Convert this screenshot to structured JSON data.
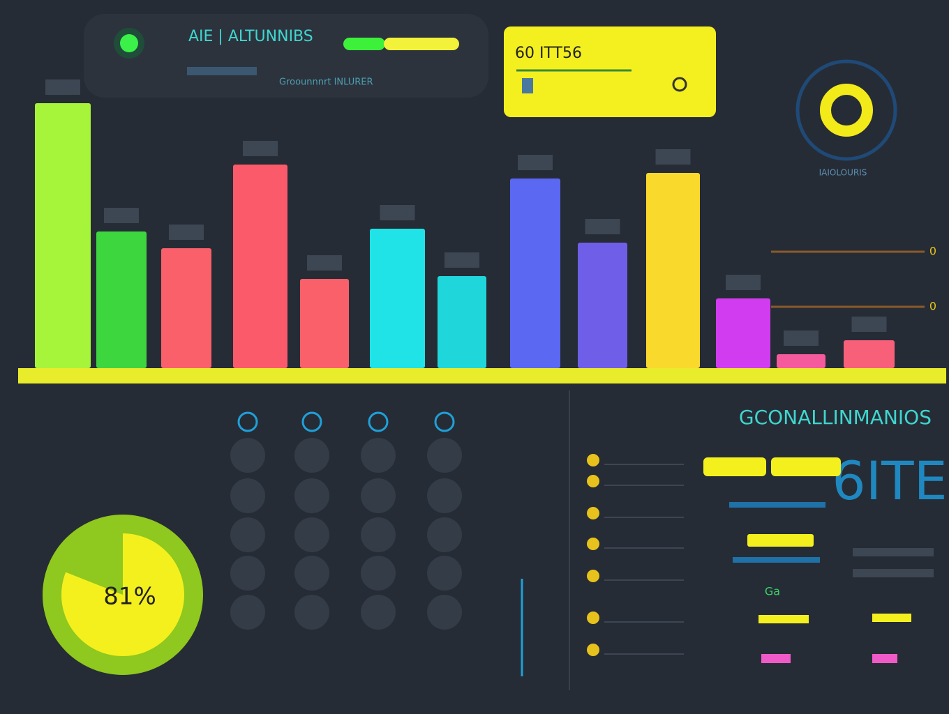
{
  "header": {
    "title": "AIE | ALTUNNIBS",
    "subtitle": "Groounnnrt INLURER"
  },
  "card": {
    "title": "60 ITT56"
  },
  "side": {
    "label": "IAIOLOURIS"
  },
  "chart_data": {
    "type": "bar",
    "categories": [
      null,
      null,
      null,
      null,
      null,
      null,
      null,
      null,
      null,
      null,
      null,
      null,
      null
    ],
    "values": [
      95,
      49,
      43,
      73,
      32,
      50,
      33,
      68,
      45,
      70,
      25,
      5,
      10
    ],
    "colors": [
      "#a6f53a",
      "#3ed63e",
      "#f9606a",
      "#fb5a6a",
      "#f9606a",
      "#1fe3e6",
      "#1fd7db",
      "#5a68f2",
      "#6f5fe8",
      "#f9d92c",
      "#d23cf0",
      "#f55a9c",
      "#f8607a"
    ],
    "ylim": [
      0,
      100
    ],
    "right_labels": [
      "0",
      "0"
    ]
  },
  "gauge": {
    "type": "pie",
    "value": 81,
    "value_label": "81%"
  },
  "panel": {
    "title": "GCONALLINMANIOS",
    "big": "6ITE",
    "tag": "Ga"
  }
}
